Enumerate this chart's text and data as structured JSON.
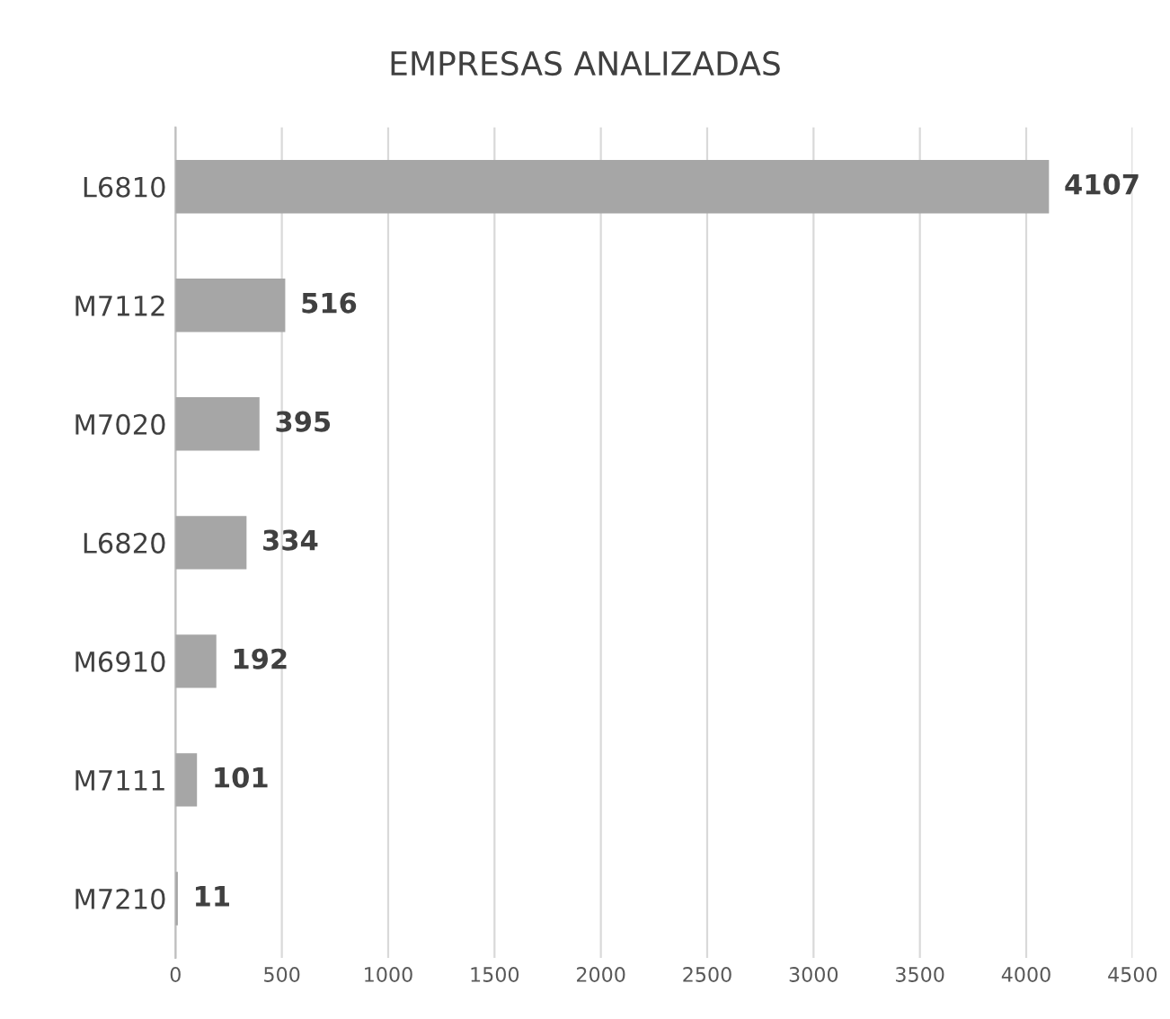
{
  "chart_data": {
    "type": "bar",
    "orientation": "horizontal",
    "title": "EMPRESAS ANALIZADAS",
    "categories": [
      "L6810",
      "M7112",
      "M7020",
      "L6820",
      "M6910",
      "M7111",
      "M7210"
    ],
    "values": [
      4107,
      516,
      395,
      334,
      192,
      101,
      11
    ],
    "color": "#a6a6a6",
    "xlim": [
      0,
      4500
    ],
    "xticks": [
      0,
      500,
      1000,
      1500,
      2000,
      2500,
      3000,
      3500,
      4000,
      4500
    ],
    "grid": "x",
    "data_labels": true,
    "legend": false
  }
}
